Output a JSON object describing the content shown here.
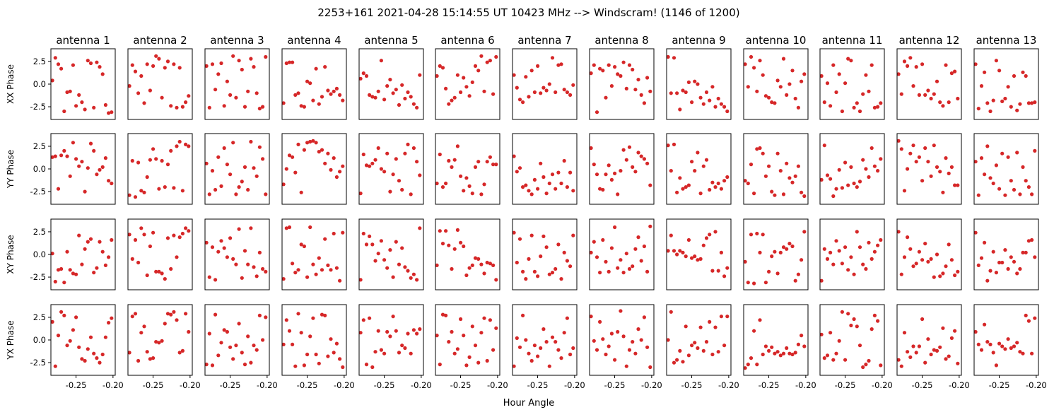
{
  "title": "2253+161  2021-04-28 15:14:55 UT  10423 MHz  --> Windscram! (1146 of 1200)",
  "xlabel": "Hour Angle",
  "marker_color": "#d62728",
  "chart_data": {
    "type": "scatter",
    "title": "2253+161  2021-04-28 15:14:55 UT  10423 MHz  --> Windscram! (1146 of 1200)",
    "xlabel": "Hour Angle",
    "columns": [
      "antenna 1",
      "antenna 2",
      "antenna 3",
      "antenna 4",
      "antenna 5",
      "antenna 6",
      "antenna 7",
      "antenna 8",
      "antenna 9",
      "antenna 10",
      "antenna 11",
      "antenna 12",
      "antenna 13"
    ],
    "rows": [
      "XX Phase",
      "YY Phase",
      "XY Phase",
      "YX Phase"
    ],
    "xlim": [
      -0.284,
      -0.197
    ],
    "ylim": [
      -3.9,
      3.9
    ],
    "xticks": [
      -0.25,
      -0.2
    ],
    "xtick_labels": [
      "-0.25",
      "-0.20"
    ],
    "yticks": [
      2.5,
      0.0,
      -2.5
    ],
    "ytick_labels": [
      "2.5",
      "0.0",
      "-2.5"
    ],
    "x": [
      -0.282,
      -0.278,
      -0.274,
      -0.27,
      -0.266,
      -0.262,
      -0.258,
      -0.254,
      -0.25,
      -0.246,
      -0.242,
      -0.238,
      -0.234,
      -0.23,
      -0.226,
      -0.222,
      -0.218,
      -0.214,
      -0.21,
      -0.206,
      -0.202
    ],
    "panels": [
      [
        [
          0.4,
          2.9,
          2.2,
          1.7,
          -3.0,
          -0.9,
          -0.8,
          2.1,
          -2.4,
          -1.2,
          -2.0,
          -2.8,
          2.6,
          2.3,
          -2.6,
          2.4,
          1.9,
          1.1,
          -2.3,
          -3.2,
          -3.1
        ],
        [
          -0.2,
          2.1,
          1.4,
          -1.0,
          0.9,
          -2.1,
          2.2,
          -0.7,
          2.0,
          3.1,
          2.8,
          -1.5,
          1.8,
          2.5,
          -2.4,
          2.2,
          -2.6,
          1.8,
          -2.5,
          -2.0,
          -1.3
        ],
        [
          2.0,
          -2.6,
          2.2,
          -0.6,
          1.1,
          2.3,
          -2.4,
          0.3,
          -1.2,
          3.1,
          -1.5,
          2.6,
          1.6,
          -2.5,
          -0.8,
          2.8,
          1.9,
          -1.0,
          -2.7,
          -2.5,
          3.0
        ],
        [
          -2.1,
          2.3,
          2.4,
          2.4,
          -1.2,
          -1.0,
          -2.4,
          -2.5,
          0.3,
          0.1,
          -1.8,
          1.7,
          -2.2,
          -1.4,
          1.9,
          -0.7,
          -1.1,
          -0.8,
          -0.5,
          -1.2,
          -1.8
        ],
        [
          0.6,
          1.2,
          0.9,
          -1.2,
          -1.4,
          -1.5,
          -0.8,
          2.6,
          -1.7,
          -0.2,
          0.5,
          -1.0,
          -0.6,
          -2.3,
          -0.1,
          -1.6,
          -0.9,
          -1.4,
          -2.2,
          -2.6,
          1.0
        ],
        [
          0.9,
          2.0,
          1.8,
          -0.5,
          -2.2,
          -1.8,
          -1.5,
          1.0,
          -0.9,
          0.7,
          -0.3,
          -1.3,
          0.2,
          2.0,
          1.5,
          3.1,
          -0.8,
          2.4,
          2.6,
          -1.1,
          3.0
        ],
        [
          1.0,
          -0.4,
          -1.7,
          -2.0,
          0.8,
          -1.4,
          1.5,
          -0.9,
          2.0,
          -1.0,
          -0.4,
          -0.7,
          0.0,
          2.9,
          -0.9,
          2.1,
          2.2,
          -0.6,
          -0.9,
          -1.2,
          -0.1
        ],
        [
          1.2,
          2.1,
          -3.1,
          1.7,
          1.5,
          -1.5,
          2.1,
          -0.2,
          1.9,
          1.1,
          0.9,
          2.4,
          -0.5,
          2.1,
          1.6,
          -0.6,
          0.5,
          -1.2,
          -2.1,
          0.7,
          -0.8
        ],
        [
          3.0,
          -1.0,
          2.9,
          -1.0,
          -2.8,
          -0.7,
          -0.9,
          0.2,
          -2.0,
          0.3,
          0.0,
          -1.5,
          -2.2,
          -0.9,
          -1.8,
          -0.3,
          -2.5,
          -1.6,
          -2.2,
          -2.5,
          -3.0
        ],
        [
          2.2,
          -0.3,
          3.0,
          1.8,
          -0.8,
          2.6,
          1.0,
          -1.3,
          -1.5,
          -2.0,
          -2.1,
          0.4,
          -0.3,
          2.8,
          -1.2,
          0.0,
          1.5,
          -1.6,
          -2.6,
          0.3,
          1.1
        ],
        [
          0.9,
          -2.0,
          0.1,
          -2.4,
          2.1,
          -0.9,
          1.1,
          -3.0,
          0.1,
          2.8,
          2.6,
          -2.6,
          -2.1,
          -3.0,
          -1.1,
          1.0,
          -0.8,
          2.1,
          -2.6,
          -2.5,
          -2.1
        ],
        [
          1.1,
          -1.1,
          2.5,
          2.0,
          2.9,
          -0.2,
          1.9,
          -1.2,
          2.2,
          -1.2,
          -0.7,
          -1.6,
          -1.1,
          0.3,
          -2.0,
          -2.4,
          2.1,
          -2.0,
          1.2,
          1.4,
          -1.6
        ],
        [
          2.2,
          -2.7,
          -0.2,
          1.3,
          -2.1,
          -3.0,
          -1.8,
          2.6,
          1.5,
          -1.9,
          -1.6,
          -0.3,
          -2.5,
          0.9,
          -2.9,
          -2.2,
          1.3,
          0.9,
          -2.1,
          -2.1,
          -2.0
        ]
      ],
      [
        [
          1.3,
          1.4,
          -2.2,
          1.5,
          2.0,
          1.4,
          -0.8,
          2.9,
          1.1,
          0.3,
          0.8,
          -2.5,
          0.1,
          2.8,
          2.0,
          -0.6,
          -0.1,
          0.2,
          1.2,
          -1.3,
          -1.6
        ],
        [
          -2.9,
          0.9,
          -3.1,
          0.7,
          -2.4,
          -2.6,
          -0.9,
          1.0,
          2.2,
          1.1,
          -2.2,
          0.9,
          -2.0,
          0.5,
          2.0,
          -2.1,
          2.5,
          3.0,
          -2.4,
          2.7,
          2.5
        ],
        [
          0.6,
          -2.8,
          -0.2,
          -2.3,
          1.3,
          -1.9,
          2.3,
          0.5,
          -0.6,
          2.9,
          -2.8,
          -2.0,
          -1.4,
          0.2,
          -2.3,
          3.0,
          0.1,
          -0.8,
          2.4,
          1.1,
          -2.8
        ],
        [
          -1.7,
          0.0,
          1.5,
          1.3,
          -0.4,
          2.7,
          -2.6,
          2.1,
          2.9,
          3.0,
          3.1,
          2.9,
          1.9,
          2.1,
          0.6,
          1.7,
          -0.1,
          1.2,
          -0.9,
          -0.3,
          0.3
        ],
        [
          -2.7,
          1.6,
          0.4,
          0.3,
          0.6,
          1.0,
          2.3,
          0.0,
          -0.3,
          1.7,
          -2.5,
          -0.6,
          1.1,
          -1.3,
          -2.3,
          1.7,
          2.7,
          -2.8,
          2.3,
          0.8,
          -0.7
        ],
        [
          -1.6,
          1.6,
          -2.0,
          -1.6,
          0.9,
          0.2,
          1.0,
          2.5,
          -0.8,
          -2.4,
          -1.0,
          -1.9,
          -2.7,
          0.2,
          0.8,
          -2.8,
          -1.7,
          0.8,
          1.3,
          0.5,
          0.5
        ],
        [
          1.4,
          -0.3,
          0.1,
          -2.0,
          -1.8,
          -2.4,
          -2.8,
          -1.2,
          -2.2,
          0.6,
          -0.9,
          -2.7,
          -1.6,
          -0.6,
          -2.2,
          -0.4,
          -1.6,
          0.9,
          -2.0,
          -0.4,
          -2.4
        ],
        [
          2.3,
          0.5,
          -0.6,
          -2.2,
          -2.3,
          -0.6,
          0.4,
          -1.2,
          -0.5,
          -2.8,
          -0.2,
          2.1,
          1.0,
          2.4,
          0.2,
          -0.3,
          1.8,
          1.4,
          1.1,
          0.6,
          -1.8
        ],
        [
          2.6,
          -0.2,
          2.7,
          -2.6,
          -1.0,
          -2.2,
          -2.0,
          -1.8,
          0.8,
          -0.2,
          1.8,
          -2.7,
          0.3,
          1.0,
          -2.3,
          -1.5,
          -2.0,
          -1.6,
          -2.2,
          -1.3,
          -0.9
        ],
        [
          -1.3,
          -1.6,
          0.5,
          -2.7,
          2.2,
          2.3,
          1.7,
          -0.8,
          0.3,
          -2.5,
          -2.9,
          1.7,
          -0.2,
          -2.8,
          0.6,
          -1.0,
          -1.5,
          -0.8,
          0.3,
          -2.6,
          -3.0
        ],
        [
          -1.2,
          2.6,
          -0.7,
          -1.1,
          -3.0,
          -2.2,
          -0.1,
          -2.1,
          0.7,
          -1.8,
          0.2,
          -1.6,
          -2.0,
          -1.4,
          1.0,
          0.0,
          -0.9,
          2.3,
          0.3,
          -0.2,
          1.1
        ],
        [
          3.1,
          2.2,
          -2.4,
          0.0,
          1.7,
          2.6,
          0.8,
          1.3,
          -1.3,
          2.3,
          0.8,
          -0.8,
          2.6,
          0.2,
          -0.3,
          -2.6,
          1.2,
          -0.5,
          0.2,
          -1.8,
          -1.8
        ],
        [
          0.8,
          -2.9,
          1.2,
          -0.6,
          2.5,
          -1.0,
          -1.6,
          0.4,
          -2.2,
          1.7,
          -2.9,
          1.3,
          -1.3,
          -2.3,
          1.8,
          -2.8,
          0.2,
          -1.3,
          -2.0,
          -2.8,
          2.0
        ]
      ],
      [
        [
          0.1,
          -3.0,
          -1.7,
          -1.6,
          -3.1,
          0.3,
          -1.7,
          -2.1,
          -2.2,
          2.1,
          -1.1,
          0.6,
          1.4,
          1.7,
          -2.0,
          -1.5,
          1.4,
          0.3,
          -1.2,
          -0.3,
          1.6
        ],
        [
          2.2,
          -0.5,
          1.6,
          -0.9,
          2.9,
          2.2,
          -2.3,
          0.9,
          2.4,
          -1.9,
          -1.9,
          -2.1,
          -2.7,
          1.8,
          -1.6,
          2.1,
          -0.3,
          1.9,
          2.3,
          2.9,
          2.6
        ],
        [
          1.3,
          -2.5,
          0.8,
          -2.8,
          0.3,
          1.5,
          0.7,
          -0.3,
          1.8,
          -0.5,
          -1.1,
          2.8,
          -2.6,
          0.4,
          -1.1,
          2.9,
          -1.4,
          -2.4,
          0.2,
          -1.6,
          -1.9
        ],
        [
          -2.7,
          2.9,
          3.0,
          -1.0,
          -2.0,
          -1.7,
          1.1,
          0.9,
          -2.5,
          3.0,
          -1.1,
          -2.2,
          -0.4,
          -1.7,
          1.7,
          -1.2,
          -1.7,
          2.3,
          -1.5,
          -2.9,
          2.4
        ],
        [
          -2.8,
          2.3,
          1.1,
          2.0,
          1.1,
          -0.7,
          0.1,
          1.5,
          -0.6,
          -1.5,
          0.5,
          -2.5,
          1.4,
          -1.1,
          0.7,
          -1.4,
          -1.8,
          -2.6,
          -2.2,
          -2.8,
          2.9
        ],
        [
          -1.2,
          2.6,
          1.2,
          2.6,
          1.0,
          -1.6,
          0.6,
          2.7,
          1.3,
          0.9,
          -2.3,
          -1.5,
          -1.2,
          -0.4,
          -0.5,
          -1.1,
          -2.1,
          -0.9,
          -1.0,
          -1.2,
          -2.8
        ],
        [
          2.4,
          -0.9,
          1.7,
          -1.9,
          -2.7,
          -0.5,
          2.1,
          -1.9,
          -2.4,
          -0.2,
          2.0,
          0.8,
          -2.2,
          -2.0,
          -1.6,
          1.1,
          -2.7,
          0.2,
          -0.7,
          -1.3,
          2.1
        ],
        [
          0.2,
          1.4,
          -0.3,
          -2.0,
          1.6,
          -0.8,
          -1.9,
          0.7,
          3.0,
          -1.5,
          -0.6,
          -2.0,
          0.1,
          -1.6,
          -1.3,
          0.6,
          1.9,
          -0.7,
          0.9,
          -1.9,
          3.1
        ],
        [
          0.4,
          2.1,
          0.4,
          0.0,
          0.4,
          0.2,
          -0.2,
          1.6,
          -0.4,
          -0.2,
          -0.6,
          -0.5,
          1.0,
          1.8,
          2.2,
          -1.8,
          2.5,
          -1.8,
          0.2,
          -2.4,
          -1.5
        ],
        [
          -0.8,
          -3.1,
          2.2,
          -3.2,
          2.3,
          0.2,
          2.2,
          -3.1,
          -1.9,
          -0.2,
          0.3,
          -2.1,
          0.2,
          0.8,
          0.6,
          1.2,
          0.9,
          -2.9,
          -2.2,
          -0.6,
          2.5
        ],
        [
          -2.9,
          0.6,
          -0.5,
          0.2,
          -1.1,
          1.5,
          0.4,
          -1.0,
          0.8,
          -1.7,
          -0.3,
          -2.2,
          2.5,
          0.8,
          -1.1,
          -1.6,
          1.3,
          -0.5,
          0.3,
          1.0,
          1.6
        ],
        [
          2.5,
          -2.2,
          -0.3,
          1.9,
          0.6,
          -1.3,
          -1.0,
          0.3,
          -0.6,
          1.2,
          -0.8,
          -0.5,
          -2.5,
          0.0,
          -2.4,
          -2.1,
          -1.3,
          1.1,
          -0.6,
          -2.3,
          -1.9
        ],
        [
          2.4,
          -1.2,
          -0.4,
          1.3,
          -2.9,
          -1.8,
          0.3,
          -2.0,
          -0.9,
          -0.9,
          0.5,
          -1.6,
          -0.3,
          -0.8,
          -2.1,
          -1.6,
          0.2,
          0.2,
          1.5,
          1.6,
          -0.3
        ]
      ],
      [
        [
          2.0,
          -2.9,
          0.5,
          3.1,
          2.7,
          -0.6,
          -0.1,
          1.1,
          2.5,
          -0.8,
          -2.1,
          -2.3,
          -1.0,
          0.3,
          -1.5,
          -2.0,
          -2.5,
          -1.6,
          0.3,
          1.9,
          2.4
        ],
        [
          -1.4,
          2.6,
          2.9,
          -2.3,
          0.8,
          1.5,
          -1.3,
          -2.1,
          -2.0,
          -0.2,
          -0.3,
          -0.1,
          1.8,
          2.9,
          2.8,
          3.1,
          2.2,
          -1.4,
          -1.2,
          2.9,
          0.9
        ],
        [
          -2.7,
          0.7,
          -2.8,
          2.8,
          -1.7,
          -0.3,
          1.1,
          0.9,
          -0.8,
          -2.1,
          -0.6,
          1.8,
          -1.4,
          -2.7,
          0.4,
          -2.5,
          -0.6,
          -1.1,
          2.7,
          0.0,
          2.5
        ],
        [
          -0.5,
          2.2,
          1.0,
          -0.5,
          -2.9,
          2.9,
          0.8,
          -2.8,
          -1.6,
          0.4,
          2.4,
          -1.6,
          -2.6,
          2.8,
          2.7,
          -1.8,
          0.1,
          -1.4,
          -0.4,
          -2.1,
          -3.0
        ],
        [
          0.8,
          2.2,
          -2.7,
          2.4,
          -3.0,
          -1.3,
          1.0,
          -1.1,
          -1.5,
          0.9,
          0.4,
          2.6,
          1.0,
          -1.4,
          -0.6,
          -0.9,
          0.7,
          -1.5,
          1.1,
          0.7,
          1.2
        ],
        [
          0.5,
          -2.7,
          2.8,
          2.7,
          -0.2,
          0.9,
          -1.5,
          -1.0,
          2.3,
          0.5,
          -2.8,
          -1.9,
          1.5,
          -0.6,
          -2.5,
          0.8,
          2.4,
          -2.3,
          2.2,
          -1.1,
          1.3
        ],
        [
          -2.9,
          0.2,
          -0.8,
          2.7,
          0.0,
          -1.5,
          -2.3,
          -0.6,
          -1.8,
          -0.9,
          1.2,
          -0.2,
          -2.9,
          0.3,
          -0.2,
          -1.1,
          -2.0,
          0.8,
          2.4,
          -1.6,
          -0.9
        ],
        [
          2.6,
          -0.1,
          -1.1,
          2.0,
          0.1,
          -1.6,
          -0.7,
          0.7,
          -2.2,
          0.9,
          3.2,
          0.4,
          -2.9,
          -1.1,
          -0.2,
          -1.5,
          1.2,
          0.0,
          2.5,
          -0.8,
          -3.0
        ],
        [
          0.0,
          3.1,
          -2.5,
          -2.2,
          -1.2,
          -2.4,
          1.5,
          -1.7,
          -0.6,
          -0.3,
          -0.9,
          1.4,
          -1.2,
          -0.2,
          2.0,
          -1.6,
          1.4,
          -1.3,
          2.6,
          -0.6,
          2.6
        ],
        [
          -3.1,
          -2.7,
          -2.0,
          1.0,
          -2.7,
          2.2,
          -1.6,
          -0.7,
          -1.2,
          -0.8,
          -1.5,
          -1.3,
          -1.7,
          -1.5,
          -0.9,
          -1.5,
          -1.6,
          -1.4,
          -0.5,
          0.5,
          -0.7
        ],
        [
          0.6,
          -2.0,
          -1.7,
          0.8,
          -2.2,
          -1.5,
          -0.1,
          3.1,
          -2.2,
          2.9,
          1.6,
          2.3,
          1.5,
          -0.6,
          -3.0,
          -2.7,
          -2.3,
          1.2,
          2.7,
          2.1,
          -2.8
        ],
        [
          -2.2,
          -2.9,
          0.8,
          -1.3,
          -1.9,
          -0.7,
          -1.4,
          -0.7,
          2.3,
          -2.5,
          0.1,
          -1.6,
          -1.1,
          -1.2,
          -0.8,
          1.3,
          -2.1,
          -1.8,
          0.2,
          1.0,
          -2.6
        ],
        [
          0.9,
          -0.5,
          -1.1,
          1.7,
          -0.2,
          -0.5,
          -1.4,
          -2.8,
          -0.4,
          -0.7,
          -1.0,
          0.1,
          -0.9,
          -0.7,
          -0.3,
          -1.3,
          -1.5,
          2.7,
          2.1,
          -1.5,
          2.4
        ]
      ]
    ]
  }
}
